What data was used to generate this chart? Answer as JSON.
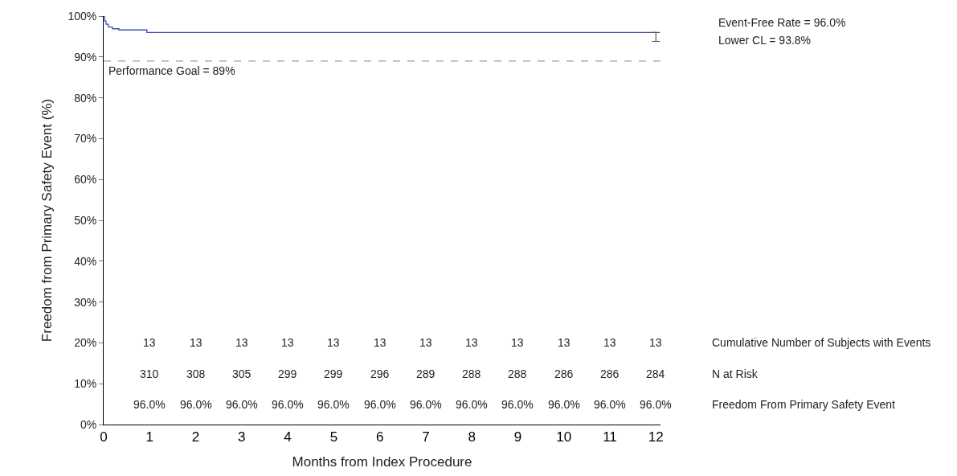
{
  "chart_data": {
    "type": "step",
    "xlabel": "Months from Index Procedure",
    "ylabel": "Freedom from Primary Safety Event (%)",
    "x": [
      0,
      0.02,
      0.05,
      0.1,
      0.19,
      0.33,
      0.94,
      12
    ],
    "series": [
      {
        "color": "#4050b0",
        "values": [
          100,
          98.8,
          98.0,
          97.3,
          96.9,
          96.6,
          96.0,
          96.0
        ],
        "errors": [
          null,
          null,
          null,
          null,
          null,
          null,
          null,
          [
            93.8,
            96.0
          ]
        ]
      }
    ],
    "xlim": [
      0,
      12.1
    ],
    "xticks": [
      0,
      1,
      2,
      3,
      4,
      5,
      6,
      7,
      8,
      9,
      10,
      11,
      12
    ],
    "ylim": [
      0,
      100
    ],
    "yticks": [
      {
        "value": 0,
        "label": "0%"
      },
      {
        "value": 10,
        "label": "10%"
      },
      {
        "value": 20,
        "label": "20%"
      },
      {
        "value": 30,
        "label": "30%"
      },
      {
        "value": 40,
        "label": "40%"
      },
      {
        "value": 50,
        "label": "50%"
      },
      {
        "value": 60,
        "label": "60%"
      },
      {
        "value": 70,
        "label": "70%"
      },
      {
        "value": 80,
        "label": "80%"
      },
      {
        "value": 90,
        "label": "90%"
      },
      {
        "value": 100,
        "label": "100%"
      }
    ],
    "ref_lines": [
      {
        "axis": "y",
        "value": 89,
        "label": "Performance Goal = 89%",
        "color": "#a0a0a0",
        "line_style": "dashed"
      }
    ],
    "annotations": [
      "Event-Free Rate = 96.0%",
      "Lower CL = 93.8%",
      "13",
      "13",
      "13",
      "13",
      "13",
      "13",
      "13",
      "13",
      "13",
      "13",
      "13",
      "13",
      "Cumulative Number of Subjects with Events",
      "310",
      "308",
      "305",
      "299",
      "299",
      "296",
      "289",
      "288",
      "288",
      "286",
      "286",
      "284",
      "N at Risk",
      "96.0%",
      "96.0%",
      "96.0%",
      "96.0%",
      "96.0%",
      "96.0%",
      "96.0%",
      "96.0%",
      "96.0%",
      "96.0%",
      "96.0%",
      "96.0%",
      "Freedom From Primary Safety Event"
    ]
  }
}
